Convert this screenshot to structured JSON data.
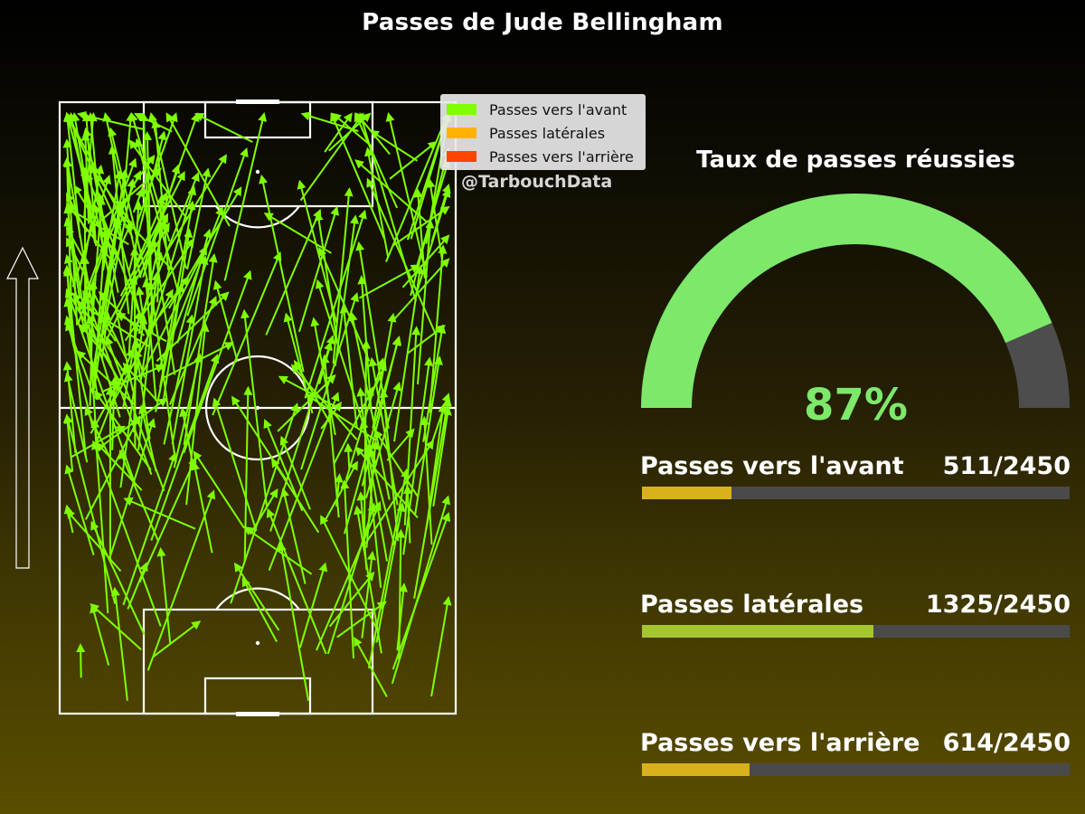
{
  "title": "Passes de Jude Bellingham",
  "watermark": "@TarbouchData",
  "legend": [
    {
      "label": "Passes vers l'avant",
      "color": "#7fff00"
    },
    {
      "label": "Passes latérales",
      "color": "#ffb300"
    },
    {
      "label": "Passes vers l'arrière",
      "color": "#ff4500"
    }
  ],
  "gauge": {
    "title": "Taux de passes réussies",
    "value_label": "87%",
    "value": 87,
    "fill_color": "#7ee86a",
    "rest_color": "#4d4d4d"
  },
  "stats": [
    {
      "label": "Passes vers l'avant",
      "value_text": "511/2450",
      "count": 511,
      "total": 2450,
      "color": "#d9b11a"
    },
    {
      "label": "Passes latérales",
      "value_text": "1325/2450",
      "count": 1325,
      "total": 2450,
      "color": "#a5c531"
    },
    {
      "label": "Passes vers l'arrière",
      "value_text": "614/2450",
      "count": 614,
      "total": 2450,
      "color": "#d9b11a"
    }
  ],
  "chart_data": [
    {
      "type": "scatter",
      "title": "Passes de Jude Bellingham",
      "description_series": "Passes vers l'avant",
      "color": "#7fff00",
      "pitch": "vertical, attacking upward",
      "passes_shown": 300
    },
    {
      "type": "pie",
      "title": "Taux de passes réussies",
      "values": [
        87,
        13
      ],
      "unit": "%"
    },
    {
      "type": "bar",
      "categories": [
        "Passes vers l'avant",
        "Passes latérales",
        "Passes vers l'arrière"
      ],
      "values": [
        511,
        1325,
        614
      ],
      "total": 2450
    }
  ]
}
